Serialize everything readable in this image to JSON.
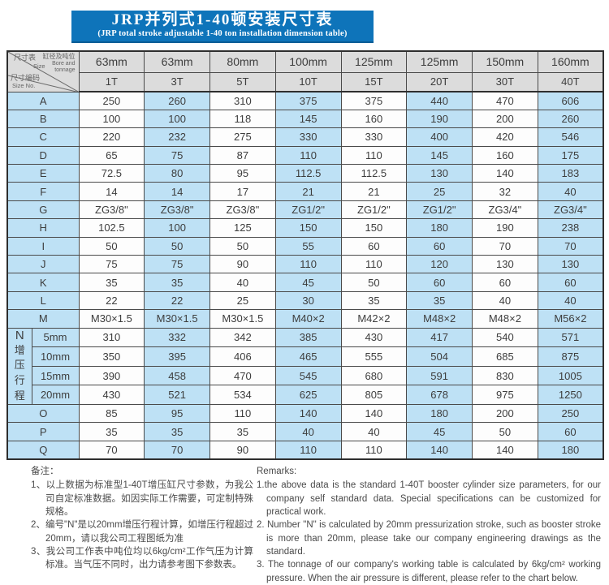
{
  "colors": {
    "banner_blue": "#0e74ba",
    "cell_blue": "#bee1f5",
    "header_gray": "#dcdcdc"
  },
  "title": {
    "zh": "JRP并列式1-40顿安装尺寸表",
    "en": "(JRP total stroke adjustable 1-40 ton installation dimension table)"
  },
  "table": {
    "corner": {
      "size_table_zh": "尺寸表",
      "size_table_en": "Size",
      "bore_zh": "缸径及吨位",
      "bore_en_1": "Bore and",
      "bore_en_2": "tonnage",
      "size_no_zh": "尺寸编码",
      "size_no_en": "Size No."
    },
    "columns": [
      {
        "bore": "63mm",
        "tonnage": "1T"
      },
      {
        "bore": "63mm",
        "tonnage": "3T"
      },
      {
        "bore": "80mm",
        "tonnage": "5T"
      },
      {
        "bore": "100mm",
        "tonnage": "10T"
      },
      {
        "bore": "125mm",
        "tonnage": "15T"
      },
      {
        "bore": "125mm",
        "tonnage": "20T"
      },
      {
        "bore": "150mm",
        "tonnage": "30T"
      },
      {
        "bore": "160mm",
        "tonnage": "40T"
      }
    ],
    "rows_top": [
      {
        "label": "A",
        "values": [
          "250",
          "260",
          "310",
          "375",
          "375",
          "440",
          "470",
          "606"
        ]
      },
      {
        "label": "B",
        "values": [
          "100",
          "100",
          "118",
          "145",
          "160",
          "190",
          "200",
          "260"
        ]
      },
      {
        "label": "C",
        "values": [
          "220",
          "232",
          "275",
          "330",
          "330",
          "400",
          "420",
          "546"
        ]
      },
      {
        "label": "D",
        "values": [
          "65",
          "75",
          "87",
          "110",
          "110",
          "145",
          "160",
          "175"
        ]
      },
      {
        "label": "E",
        "values": [
          "72.5",
          "80",
          "95",
          "112.5",
          "112.5",
          "130",
          "140",
          "183"
        ]
      },
      {
        "label": "F",
        "values": [
          "14",
          "14",
          "17",
          "21",
          "21",
          "25",
          "32",
          "40"
        ]
      },
      {
        "label": "G",
        "values": [
          "ZG3/8\"",
          "ZG3/8\"",
          "ZG3/8\"",
          "ZG1/2\"",
          "ZG1/2\"",
          "ZG1/2\"",
          "ZG3/4\"",
          "ZG3/4\""
        ]
      },
      {
        "label": "H",
        "values": [
          "102.5",
          "100",
          "125",
          "150",
          "150",
          "180",
          "190",
          "238"
        ]
      },
      {
        "label": "I",
        "values": [
          "50",
          "50",
          "50",
          "55",
          "60",
          "60",
          "70",
          "70"
        ]
      },
      {
        "label": "J",
        "values": [
          "75",
          "75",
          "90",
          "110",
          "110",
          "120",
          "130",
          "130"
        ]
      },
      {
        "label": "K",
        "values": [
          "35",
          "35",
          "40",
          "45",
          "50",
          "60",
          "60",
          "60"
        ]
      },
      {
        "label": "L",
        "values": [
          "22",
          "22",
          "25",
          "30",
          "35",
          "35",
          "40",
          "40"
        ]
      },
      {
        "label": "M",
        "values": [
          "M30×1.5",
          "M30×1.5",
          "M30×1.5",
          "M40×2",
          "M42×2",
          "M48×2",
          "M48×2",
          "M56×2"
        ]
      }
    ],
    "n_group": {
      "letter": "N",
      "vertical_label": "增压行程",
      "subrows": [
        {
          "label": "5mm",
          "values": [
            "310",
            "332",
            "342",
            "385",
            "430",
            "417",
            "540",
            "571"
          ]
        },
        {
          "label": "10mm",
          "values": [
            "350",
            "395",
            "406",
            "465",
            "555",
            "504",
            "685",
            "875"
          ]
        },
        {
          "label": "15mm",
          "values": [
            "390",
            "458",
            "470",
            "545",
            "680",
            "591",
            "830",
            "1005"
          ]
        },
        {
          "label": "20mm",
          "values": [
            "430",
            "521",
            "534",
            "625",
            "805",
            "678",
            "975",
            "1250"
          ]
        }
      ]
    },
    "rows_bottom": [
      {
        "label": "O",
        "values": [
          "85",
          "95",
          "110",
          "140",
          "140",
          "180",
          "200",
          "250"
        ]
      },
      {
        "label": "P",
        "values": [
          "35",
          "35",
          "35",
          "40",
          "40",
          "45",
          "50",
          "60"
        ]
      },
      {
        "label": "Q",
        "values": [
          "70",
          "70",
          "90",
          "110",
          "110",
          "140",
          "140",
          "180"
        ]
      }
    ]
  },
  "remarks_zh": {
    "heading": "备注：",
    "items": [
      "1、以上数据为标准型1-40T增压缸尺寸参数，为我公司自定标准数据。如因实际工作需要，可定制特殊规格。",
      "2、编号\"N\"是以20mm增压行程计算，如增压行程超过20mm，请以我公司工程图纸为准",
      "3、我公司工作表中吨位均以6kg/cm²工作气压为计算标准。当气压不同时，出力请参考图下参数表。"
    ]
  },
  "remarks_en": {
    "heading": "Remarks:",
    "items": [
      "1.the above data is the standard 1-40T booster cylinder size parameters, for our company self standard data. Special specifications can be customized for practical work.",
      "2. Number \"N\" is calculated by 20mm pressurization stroke, such as booster stroke is more than 20mm, please take our company engineering drawings as the standard.",
      "3. The tonnage of our company's working table is calculated by 6kg/cm² working pressure. When the air pressure is different, please refer to the chart below."
    ]
  }
}
